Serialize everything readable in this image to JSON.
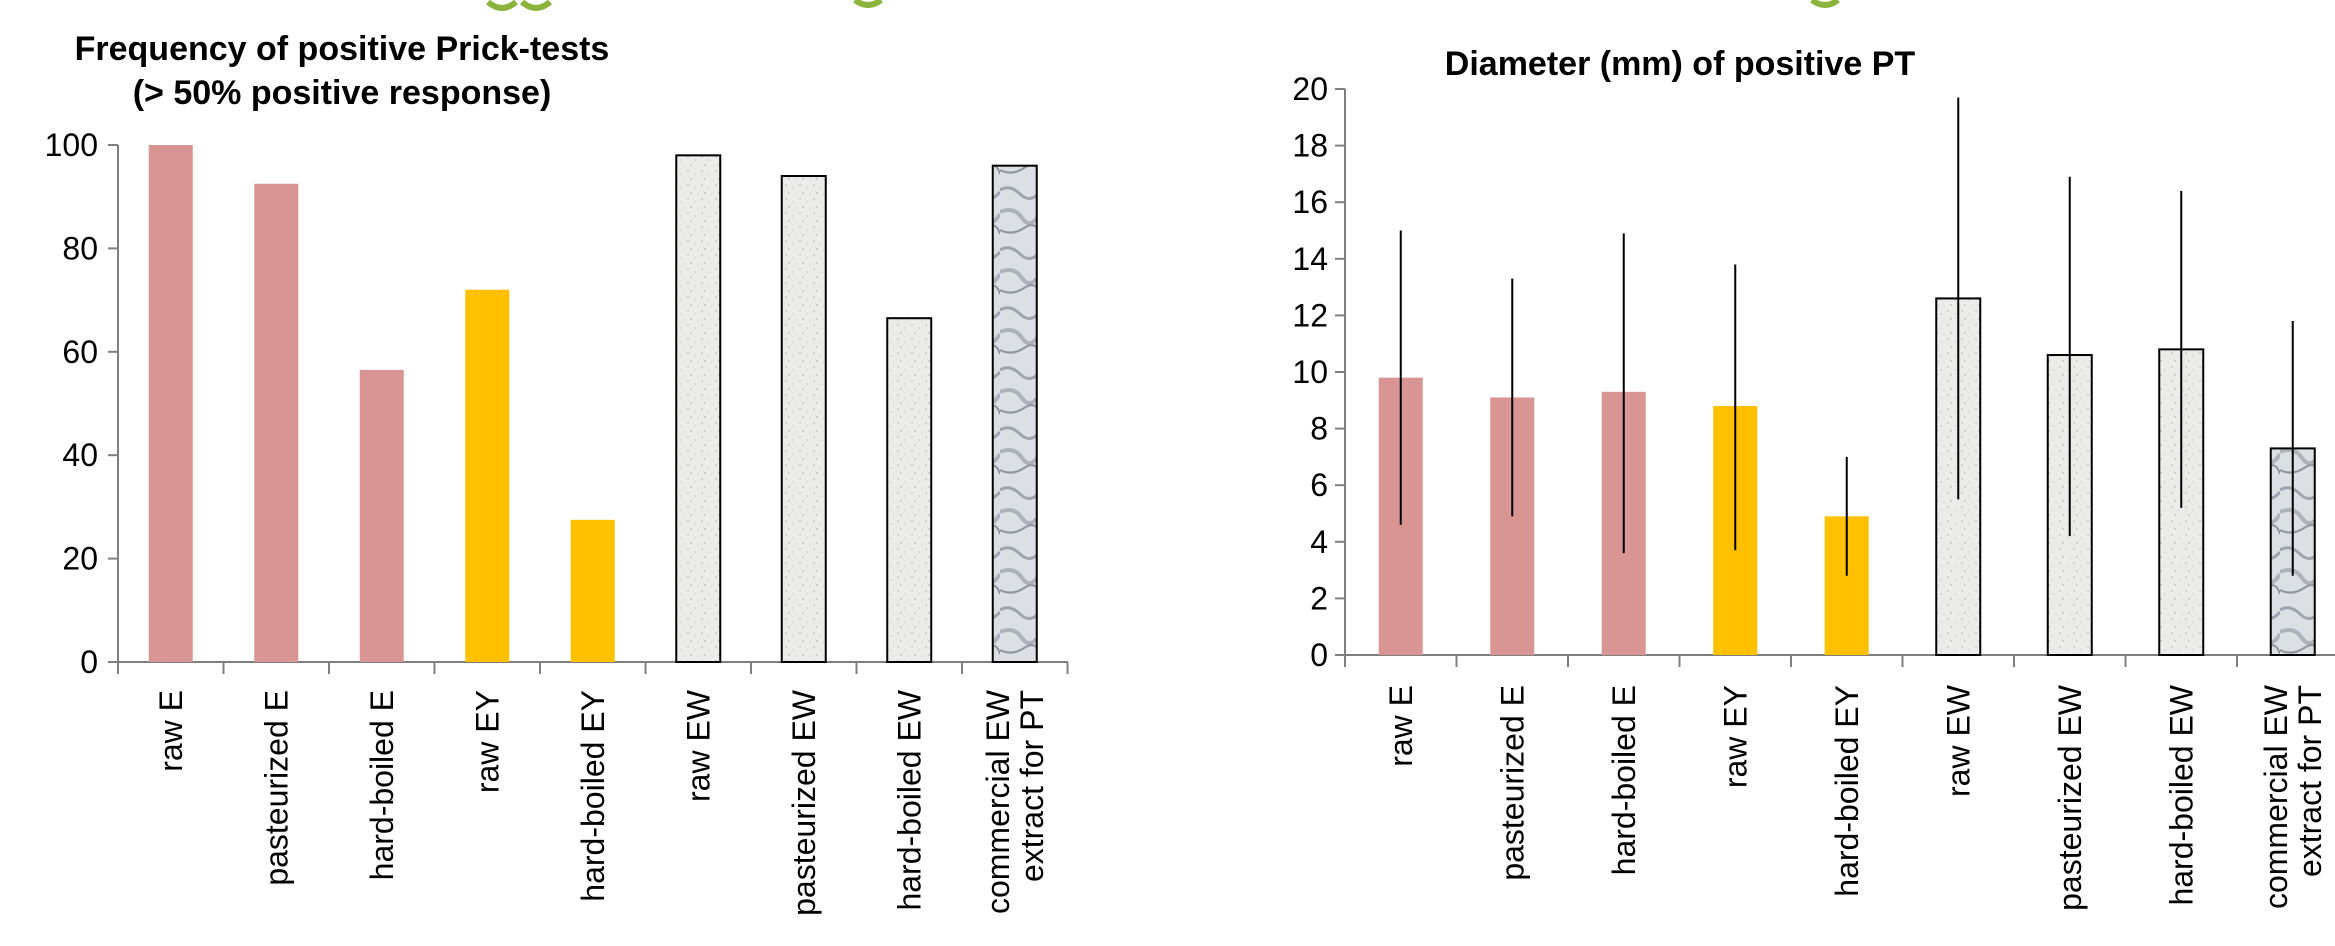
{
  "colors": {
    "pink": "#d99594",
    "yellow": "#ffc000",
    "speckle": "#e9e9e7",
    "marble": "#b8bcc4",
    "accent": "#8cb43c"
  },
  "chart_data": [
    {
      "type": "bar",
      "title_line1": "Frequency of positive Prick-tests",
      "title_line2": "(> 50% positive response)",
      "xlabel": "",
      "ylabel": "",
      "ylim": [
        0,
        100
      ],
      "yticks": [
        0,
        20,
        40,
        60,
        80,
        100
      ],
      "grid": false,
      "categories": [
        "raw E",
        "pasteurized E",
        "hard-boiled E",
        "raw EY",
        "hard-boiled EY",
        "raw EW",
        "pasteurized EW",
        "hard-boiled EW",
        "commercial EW extract for PT"
      ],
      "category_lines": [
        [
          "raw E"
        ],
        [
          "pasteurized E"
        ],
        [
          "hard-boiled E"
        ],
        [
          "raw EY"
        ],
        [
          "hard-boiled EY"
        ],
        [
          "raw EW"
        ],
        [
          "pasteurized EW"
        ],
        [
          "hard-boiled EW"
        ],
        [
          "commercial EW",
          "extract for PT"
        ]
      ],
      "values": [
        100,
        92.5,
        56.5,
        72,
        27.5,
        98,
        94,
        66.5,
        96
      ],
      "fills": [
        "pink",
        "pink",
        "pink",
        "yellow",
        "yellow",
        "speckle",
        "speckle",
        "speckle",
        "marble"
      ]
    },
    {
      "type": "bar",
      "title_line1": "Diameter (mm) of positive PT",
      "xlabel": "",
      "ylabel": "",
      "ylim": [
        0,
        20
      ],
      "yticks": [
        0,
        2,
        4,
        6,
        8,
        10,
        12,
        14,
        16,
        18,
        20
      ],
      "grid": false,
      "categories": [
        "raw E",
        "pasteurized E",
        "hard-boiled E",
        "raw EY",
        "hard-boiled EY",
        "raw EW",
        "pasteurized EW",
        "hard-boiled EW",
        "commercial EW extract for PT"
      ],
      "category_lines": [
        [
          "raw E"
        ],
        [
          "pasteurized E"
        ],
        [
          "hard-boiled E"
        ],
        [
          "raw EY"
        ],
        [
          "hard-boiled EY"
        ],
        [
          "raw EW"
        ],
        [
          "pasteurized EW"
        ],
        [
          "hard-boiled EW"
        ],
        [
          "commercial EW",
          "extract for PT"
        ]
      ],
      "values": [
        9.8,
        9.1,
        9.3,
        8.8,
        4.9,
        12.6,
        10.6,
        10.8,
        7.3
      ],
      "err_low": [
        4.6,
        4.9,
        3.6,
        3.7,
        2.8,
        5.5,
        4.2,
        5.2,
        2.8
      ],
      "err_high": [
        15.0,
        13.3,
        14.9,
        13.8,
        7.0,
        19.7,
        16.9,
        16.4,
        11.8
      ],
      "fills": [
        "pink",
        "pink",
        "pink",
        "yellow",
        "yellow",
        "speckle",
        "speckle",
        "speckle",
        "marble"
      ]
    }
  ]
}
